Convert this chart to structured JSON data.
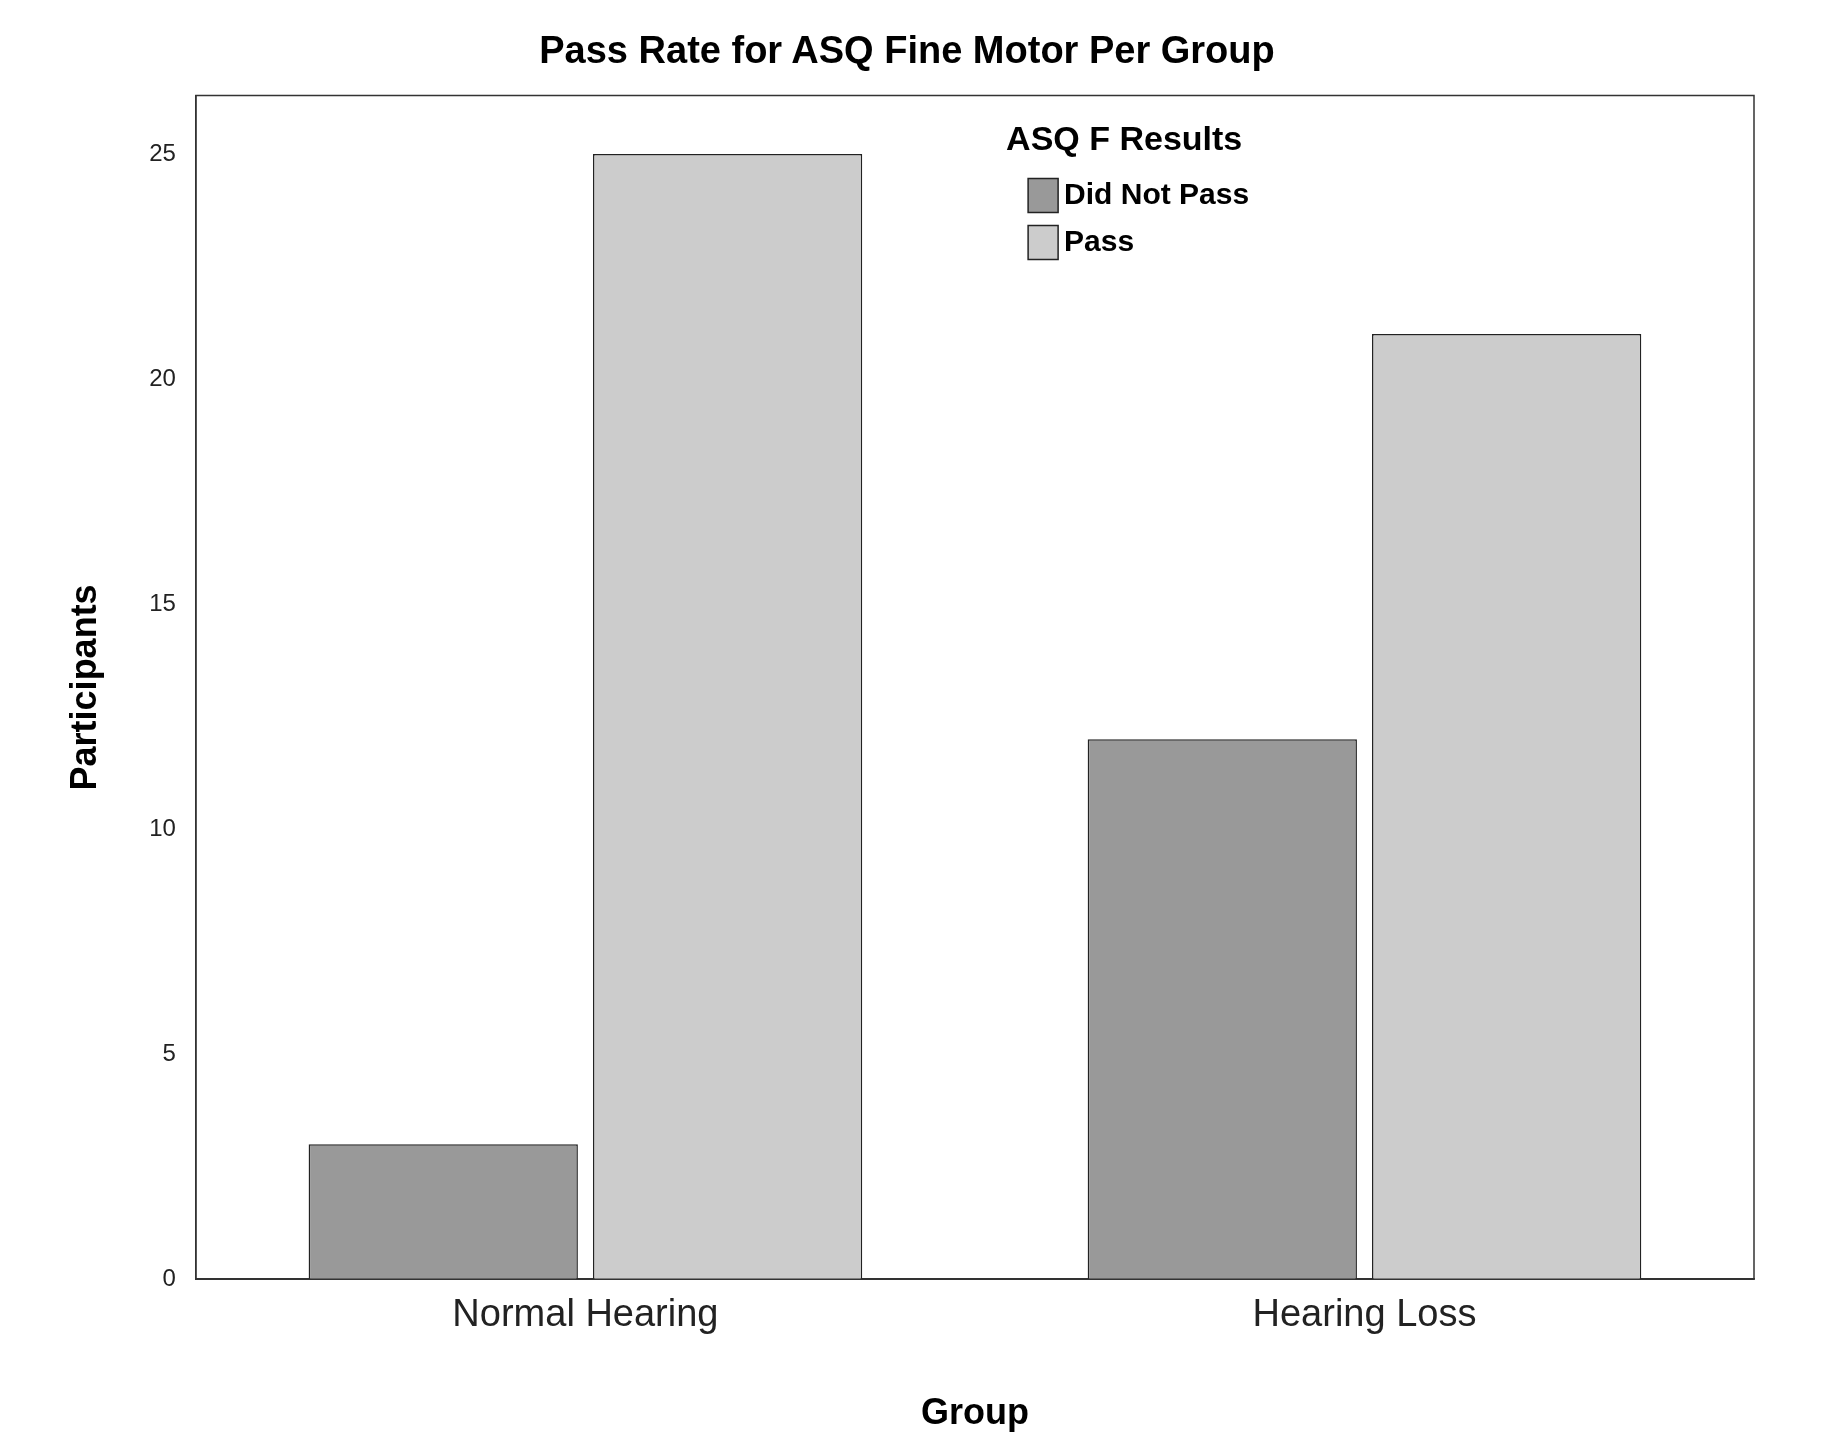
{
  "chart_data": {
    "type": "bar",
    "title": "Pass Rate for ASQ Fine Motor Per Group",
    "xlabel": "Group",
    "ylabel": "Participants",
    "legend_title": "ASQ F Results",
    "categories": [
      "Normal Hearing",
      "Hearing Loss"
    ],
    "series": [
      {
        "name": "Did Not Pass",
        "color": "#999999",
        "values": [
          3,
          12
        ]
      },
      {
        "name": "Pass",
        "color": "#cccccc",
        "values": [
          25,
          21
        ]
      }
    ],
    "ylim": [
      0,
      26.3
    ],
    "yticks": [
      0,
      5,
      10,
      15,
      20,
      25
    ],
    "grid": false,
    "legend": "top right"
  }
}
